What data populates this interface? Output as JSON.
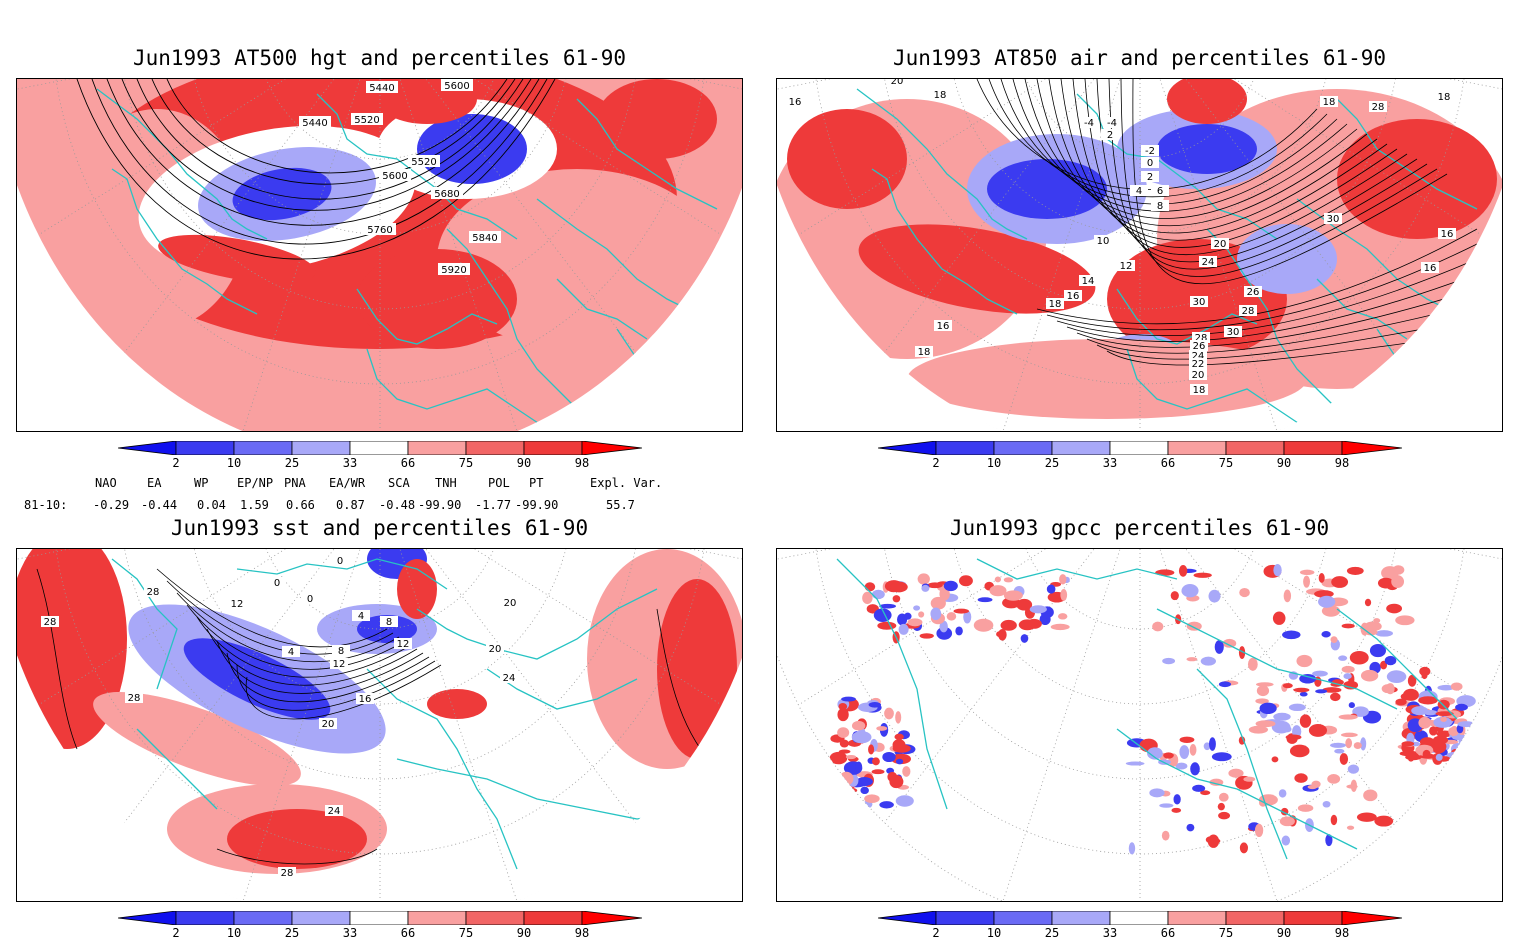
{
  "panels": [
    {
      "title": "Jun1993 AT500 hgt and percentiles 61-90",
      "contour_labels": [
        "5440",
        "5600",
        "5440",
        "5520",
        "5520",
        "5600",
        "5680",
        "5760",
        "5840",
        "5920"
      ]
    },
    {
      "title": "Jun1993 AT850 air and percentiles 61-90",
      "contour_labels": [
        "20",
        "16",
        "18",
        "-4",
        "-2",
        "0",
        "2",
        "4",
        "6",
        "8",
        "10",
        "12",
        "14",
        "16",
        "18",
        "20",
        "24",
        "26",
        "28",
        "30",
        "18",
        "28",
        "30",
        "18",
        "16",
        "16",
        "16",
        "18",
        "28",
        "26",
        "24",
        "22",
        "20",
        "18",
        "30",
        "-4",
        "2"
      ]
    },
    {
      "title": "Jun1993 sst and percentiles 61-90",
      "contour_labels": [
        "28",
        "28",
        "28",
        "12",
        "0",
        "0",
        "4",
        "8",
        "12",
        "16",
        "20",
        "24",
        "28",
        "20",
        "20",
        "24",
        "12",
        "0",
        "4",
        "8"
      ]
    },
    {
      "title": "Jun1993 gpcc percentiles 61-90",
      "contour_labels": []
    }
  ],
  "colorbar": {
    "labels": [
      "2",
      "10",
      "25",
      "33",
      "66",
      "75",
      "90",
      "98"
    ],
    "colors": [
      "#1010ee",
      "#3b3bf0",
      "#6a6af5",
      "#a8a8f8",
      "#ffffff",
      "#f9a0a0",
      "#f26666",
      "#ee3a3a",
      "#ff0000"
    ]
  },
  "indices": {
    "header": [
      "NAO",
      "EA",
      "WP",
      "EP/NP",
      "PNA",
      "EA/WR",
      "SCA",
      "TNH",
      "POL",
      "PT",
      "Expl. Var."
    ],
    "row_label": "81-10:",
    "values": [
      "-0.29",
      "-0.44",
      "0.04",
      "1.59",
      "0.66",
      "0.87",
      "-0.48",
      "-99.90",
      "-1.77",
      "-99.90",
      "55.7"
    ]
  },
  "colors": {
    "coast": "#27c3c3",
    "contour": "#000000",
    "red": "#ee3a3a",
    "light_red": "#f9a0a0",
    "blue": "#3b3bf0",
    "light_blue": "#a8a8f8"
  }
}
